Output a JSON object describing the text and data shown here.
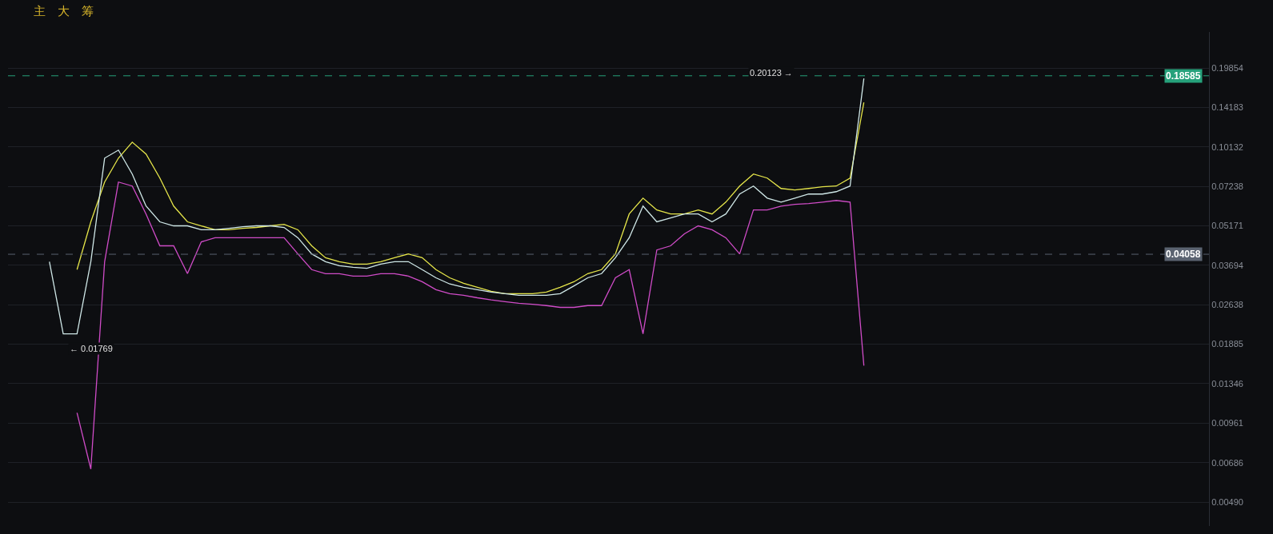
{
  "chart_data": {
    "type": "line",
    "categories": [
      null,
      null,
      null,
      null,
      null,
      null,
      null,
      null,
      null,
      null,
      null,
      null,
      null,
      null,
      null,
      null,
      null,
      null,
      null,
      null,
      null,
      null,
      null,
      null,
      null,
      null,
      null,
      null,
      null,
      null,
      null,
      null,
      null,
      null,
      null,
      null,
      null,
      null,
      null,
      null,
      null,
      null,
      null,
      null,
      null,
      null,
      null,
      null,
      null,
      null,
      null,
      null,
      null,
      null,
      null,
      null,
      null,
      null,
      null,
      null
    ],
    "series": [
      {
        "color": "#d04cc8",
        "values": [
          null,
          null,
          0.0105,
          0.0065,
          0.0381,
          0.0751,
          0.0726,
          0.0572,
          0.0436,
          0.0436,
          0.0344,
          0.0451,
          0.0467,
          0.0467,
          0.0467,
          0.0467,
          0.0467,
          0.0467,
          0.0407,
          0.0356,
          0.0344,
          0.0344,
          0.0337,
          0.0337,
          0.0344,
          0.0344,
          0.0337,
          0.0321,
          0.03,
          0.029,
          0.0286,
          0.028,
          0.0275,
          0.0271,
          0.0267,
          0.0265,
          0.0262,
          0.0258,
          0.0258,
          0.0262,
          0.0262,
          0.0332,
          0.0356,
          0.0206,
          0.0421,
          0.0436,
          0.0483,
          0.0517,
          0.05,
          0.0467,
          0.0407,
          0.0592,
          0.0592,
          0.0612,
          0.0621,
          0.0625,
          0.0633,
          0.0642,
          0.0633,
          0.0157
        ]
      },
      {
        "color": "#e6e64a",
        "values": [
          null,
          null,
          0.0356,
          0.0535,
          0.0751,
          0.0921,
          0.1055,
          0.0953,
          0.0777,
          0.0612,
          0.0535,
          0.0517,
          0.05,
          0.05,
          0.0506,
          0.051,
          0.0517,
          0.0524,
          0.05,
          0.0436,
          0.0394,
          0.0381,
          0.0373,
          0.0373,
          0.0381,
          0.0394,
          0.0407,
          0.0394,
          0.0356,
          0.0332,
          0.0317,
          0.0306,
          0.0296,
          0.029,
          0.029,
          0.029,
          0.0294,
          0.0306,
          0.0321,
          0.0344,
          0.0356,
          0.0407,
          0.0572,
          0.0655,
          0.0592,
          0.0572,
          0.0572,
          0.0592,
          0.0572,
          0.0633,
          0.0726,
          0.0804,
          0.0777,
          0.0711,
          0.0702,
          0.0711,
          0.0721,
          0.0726,
          0.0777,
          0.1482
        ]
      },
      {
        "color": "#d0e8e8",
        "values": [
          0.0381,
          0.0206,
          0.0206,
          0.0381,
          0.0921,
          0.0986,
          0.0804,
          0.0612,
          0.0535,
          0.0517,
          0.0517,
          0.05,
          0.05,
          0.0506,
          0.0513,
          0.0517,
          0.0517,
          0.051,
          0.0467,
          0.0407,
          0.0381,
          0.0368,
          0.0363,
          0.036,
          0.0373,
          0.0381,
          0.0381,
          0.0356,
          0.0332,
          0.0315,
          0.0306,
          0.03,
          0.0294,
          0.029,
          0.0286,
          0.0286,
          0.0286,
          0.029,
          0.031,
          0.0332,
          0.0344,
          0.0394,
          0.0467,
          0.0612,
          0.0535,
          0.0553,
          0.0572,
          0.0572,
          0.0535,
          0.0572,
          0.0678,
          0.0726,
          0.0655,
          0.0633,
          0.0655,
          0.0678,
          0.0678,
          0.0692,
          0.0726,
          0.1817
        ]
      }
    ],
    "log": true,
    "ylim": [
      0.004,
      0.27
    ],
    "yticks": [
      {
        "value": 0.0049,
        "label": "0.00490"
      },
      0.00686,
      0.00961,
      0.01346,
      0.01885,
      0.02638,
      0.03694,
      0.05171,
      0.07238,
      0.10132,
      0.14183,
      0.19854
    ],
    "ref_lines": [
      {
        "axis": "y",
        "value": 0.18585,
        "label": "0.18585",
        "color": "#26a17b",
        "line_style": "dashed"
      },
      {
        "axis": "y",
        "value": 0.04058,
        "label": "0.04058",
        "color": "#5a6270",
        "line_style": "dashed"
      }
    ],
    "annotations": [
      "0.20123 →",
      "← 0.01769",
      "主",
      "大",
      "筹"
    ],
    "grid": true,
    "legend": false
  }
}
